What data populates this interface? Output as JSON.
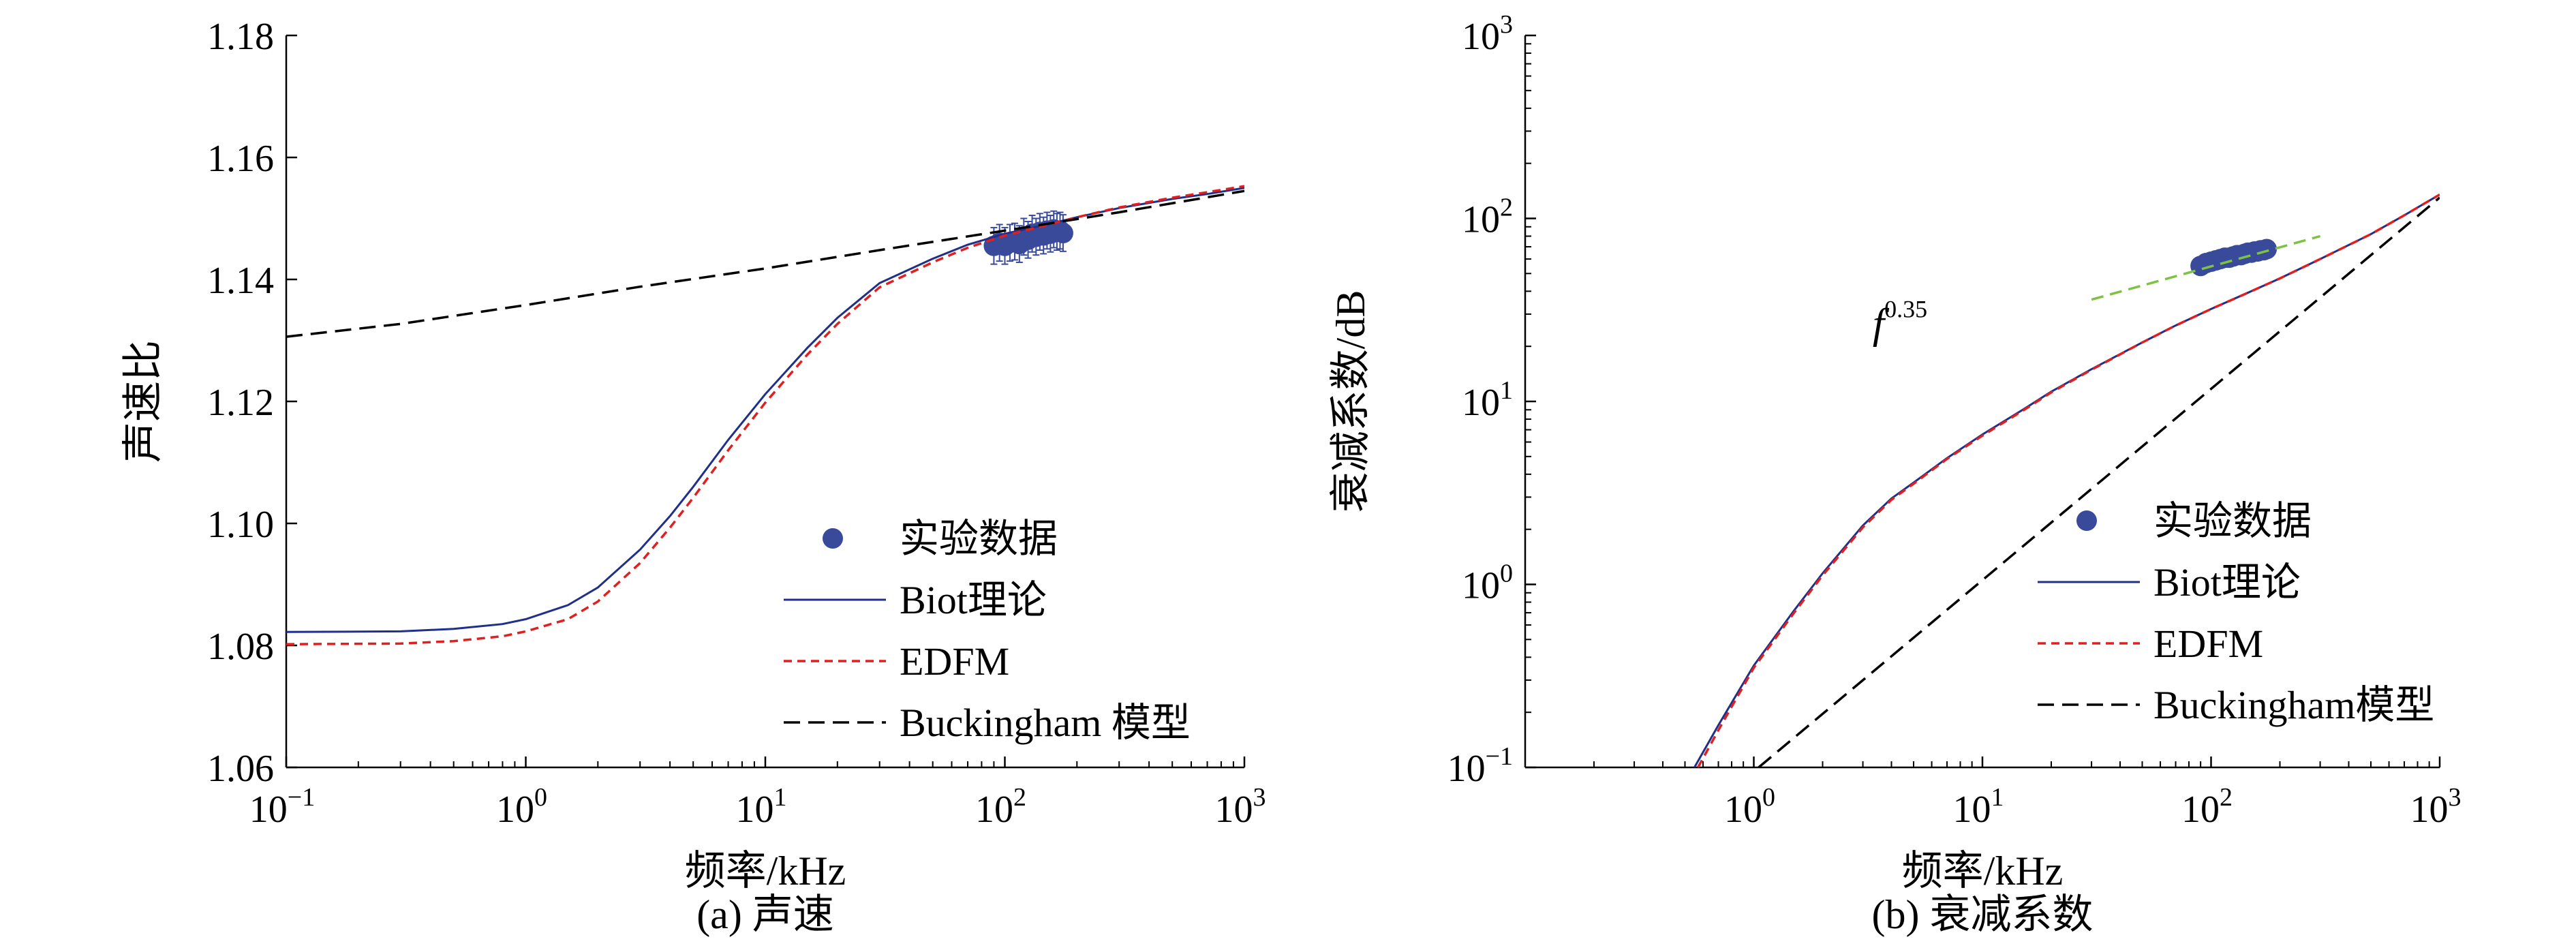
{
  "chart_data": [
    {
      "type": "line",
      "panel": "a",
      "caption": "(a) 声速",
      "xlabel": "频率/kHz",
      "ylabel": "声速比",
      "xscale": "log",
      "xlim": [
        0.1,
        1000
      ],
      "ylim": [
        1.06,
        1.18
      ],
      "xticks": [
        {
          "value": 0.1,
          "base": "10",
          "exp": "−1"
        },
        {
          "value": 1,
          "base": "10",
          "exp": "0"
        },
        {
          "value": 10,
          "base": "10",
          "exp": "1"
        },
        {
          "value": 100,
          "base": "10",
          "exp": "2"
        },
        {
          "value": 1000,
          "base": "10",
          "exp": "3"
        }
      ],
      "yticks": [
        {
          "value": 1.06,
          "label": "1.06"
        },
        {
          "value": 1.08,
          "label": "1.08"
        },
        {
          "value": 1.1,
          "label": "1.10"
        },
        {
          "value": 1.12,
          "label": "1.12"
        },
        {
          "value": 1.14,
          "label": "1.14"
        },
        {
          "value": 1.16,
          "label": "1.16"
        },
        {
          "value": 1.18,
          "label": "1.18"
        }
      ],
      "legend_position": "lower-right",
      "series": [
        {
          "name": "实验数据",
          "kind": "scatter",
          "color": "#3a4a9a",
          "points": [
            [
              90,
              1.1455
            ],
            [
              95,
              1.146
            ],
            [
              100,
              1.1455
            ],
            [
              105,
              1.146
            ],
            [
              110,
              1.1462
            ],
            [
              115,
              1.1458
            ],
            [
              120,
              1.147
            ],
            [
              125,
              1.1465
            ],
            [
              130,
              1.1475
            ],
            [
              135,
              1.147
            ],
            [
              140,
              1.1478
            ],
            [
              145,
              1.1472
            ],
            [
              150,
              1.148
            ],
            [
              155,
              1.1475
            ],
            [
              160,
              1.1482
            ],
            [
              165,
              1.1478
            ],
            [
              170,
              1.148
            ],
            [
              175,
              1.1476
            ]
          ],
          "error": 0.003
        },
        {
          "name": "Biot理论",
          "kind": "line",
          "color": "#1f2f8a",
          "dash": "",
          "points": [
            [
              0.1,
              1.0822
            ],
            [
              0.3,
              1.0823
            ],
            [
              0.5,
              1.0827
            ],
            [
              0.8,
              1.0835
            ],
            [
              1,
              1.0843
            ],
            [
              1.5,
              1.0866
            ],
            [
              2,
              1.0895
            ],
            [
              3,
              1.0957
            ],
            [
              4,
              1.1012
            ],
            [
              5,
              1.106
            ],
            [
              7,
              1.1137
            ],
            [
              10,
              1.1212
            ],
            [
              15,
              1.1288
            ],
            [
              20,
              1.1337
            ],
            [
              30,
              1.1394
            ],
            [
              50,
              1.1434
            ],
            [
              70,
              1.1457
            ],
            [
              100,
              1.1475
            ],
            [
              150,
              1.149
            ],
            [
              200,
              1.1502
            ],
            [
              300,
              1.1517
            ],
            [
              500,
              1.1532
            ],
            [
              700,
              1.154
            ],
            [
              1000,
              1.155
            ]
          ]
        },
        {
          "name": "EDFM",
          "kind": "line",
          "color": "#e02020",
          "dash": "12,8",
          "points": [
            [
              0.1,
              1.0802
            ],
            [
              0.3,
              1.0803
            ],
            [
              0.5,
              1.0807
            ],
            [
              0.8,
              1.0815
            ],
            [
              1,
              1.0823
            ],
            [
              1.5,
              1.0843
            ],
            [
              2,
              1.0872
            ],
            [
              3,
              1.0935
            ],
            [
              4,
              1.0993
            ],
            [
              5,
              1.1042
            ],
            [
              7,
              1.112
            ],
            [
              10,
              1.1198
            ],
            [
              15,
              1.1277
            ],
            [
              20,
              1.1327
            ],
            [
              30,
              1.1387
            ],
            [
              50,
              1.1428
            ],
            [
              70,
              1.1452
            ],
            [
              100,
              1.1472
            ],
            [
              150,
              1.1489
            ],
            [
              200,
              1.1502
            ],
            [
              300,
              1.1518
            ],
            [
              500,
              1.1534
            ],
            [
              700,
              1.1543
            ],
            [
              1000,
              1.1553
            ]
          ]
        },
        {
          "name": "Buckingham 模型",
          "kind": "line",
          "color": "#000000",
          "dash": "24,12",
          "points": [
            [
              0.1,
              1.1306
            ],
            [
              0.3,
              1.1327
            ],
            [
              1,
              1.1358
            ],
            [
              3,
              1.1388
            ],
            [
              10,
              1.1418
            ],
            [
              30,
              1.1448
            ],
            [
              100,
              1.148
            ],
            [
              300,
              1.151
            ],
            [
              1000,
              1.1545
            ]
          ]
        }
      ]
    },
    {
      "type": "line",
      "panel": "b",
      "caption": "(b) 衰减系数",
      "xlabel": "频率/kHz",
      "ylabel": "衰减系数/dB",
      "xscale": "log",
      "yscale": "log",
      "xlim": [
        0.1,
        1000
      ],
      "ylim": [
        0.1,
        1000
      ],
      "xticks": [
        {
          "value": 1,
          "base": "10",
          "exp": "0"
        },
        {
          "value": 10,
          "base": "10",
          "exp": "1"
        },
        {
          "value": 100,
          "base": "10",
          "exp": "2"
        },
        {
          "value": 1000,
          "base": "10",
          "exp": "3"
        }
      ],
      "yticks": [
        {
          "value": 0.1,
          "base": "10",
          "exp": "−1"
        },
        {
          "value": 1,
          "base": "10",
          "exp": "0"
        },
        {
          "value": 10,
          "base": "10",
          "exp": "1"
        },
        {
          "value": 100,
          "base": "10",
          "exp": "2"
        },
        {
          "value": 1000,
          "base": "10",
          "exp": "3"
        }
      ],
      "annotation": {
        "base": "f",
        "exp": "0.35",
        "at": [
          5,
          38
        ]
      },
      "legend_position": "lower-right",
      "series": [
        {
          "name": "实验数据",
          "kind": "scatter",
          "color": "#3a4a9a",
          "points": [
            [
              90,
              55
            ],
            [
              95,
              57
            ],
            [
              100,
              58
            ],
            [
              105,
              59
            ],
            [
              110,
              60
            ],
            [
              115,
              61
            ],
            [
              120,
              61
            ],
            [
              125,
              62
            ],
            [
              130,
              63
            ],
            [
              135,
              63
            ],
            [
              140,
              64
            ],
            [
              145,
              65
            ],
            [
              150,
              65
            ],
            [
              155,
              66
            ],
            [
              160,
              66
            ],
            [
              165,
              67
            ],
            [
              170,
              67
            ],
            [
              175,
              68
            ]
          ]
        },
        {
          "name": "Biot理论",
          "kind": "line",
          "color": "#1f2f8a",
          "dash": "",
          "points": [
            [
              0.55,
              0.1
            ],
            [
              0.7,
              0.17
            ],
            [
              1,
              0.36
            ],
            [
              1.5,
              0.72
            ],
            [
              2,
              1.15
            ],
            [
              3,
              2.1
            ],
            [
              4,
              2.95
            ],
            [
              5,
              3.6
            ],
            [
              7,
              4.9
            ],
            [
              10,
              6.6
            ],
            [
              15,
              9
            ],
            [
              20,
              11.3
            ],
            [
              30,
              15
            ],
            [
              50,
              21
            ],
            [
              70,
              26
            ],
            [
              100,
              32
            ],
            [
              150,
              40
            ],
            [
              200,
              47
            ],
            [
              300,
              60
            ],
            [
              500,
              82
            ],
            [
              700,
              104
            ],
            [
              1000,
              135
            ]
          ]
        },
        {
          "name": "EDFM",
          "kind": "line",
          "color": "#e02020",
          "dash": "12,8",
          "points": [
            [
              0.57,
              0.1
            ],
            [
              0.72,
              0.17
            ],
            [
              1,
              0.35
            ],
            [
              1.5,
              0.7
            ],
            [
              2,
              1.12
            ],
            [
              3,
              2.05
            ],
            [
              4,
              2.9
            ],
            [
              5,
              3.55
            ],
            [
              7,
              4.85
            ],
            [
              10,
              6.5
            ],
            [
              15,
              8.9
            ],
            [
              20,
              11.2
            ],
            [
              30,
              14.9
            ],
            [
              50,
              21
            ],
            [
              70,
              26
            ],
            [
              100,
              32
            ],
            [
              150,
              40
            ],
            [
              200,
              47
            ],
            [
              300,
              60
            ],
            [
              500,
              82
            ],
            [
              700,
              104
            ],
            [
              1000,
              135
            ]
          ]
        },
        {
          "name": "Buckingham模型",
          "kind": "line",
          "color": "#000000",
          "dash": "24,12",
          "points": [
            [
              1.05,
              0.1
            ],
            [
              1000,
              130
            ]
          ]
        },
        {
          "name": "",
          "kind": "line",
          "color": "#7dc242",
          "dash": "18,10",
          "points": [
            [
              30,
              36
            ],
            [
              300,
              80
            ]
          ]
        }
      ]
    }
  ]
}
